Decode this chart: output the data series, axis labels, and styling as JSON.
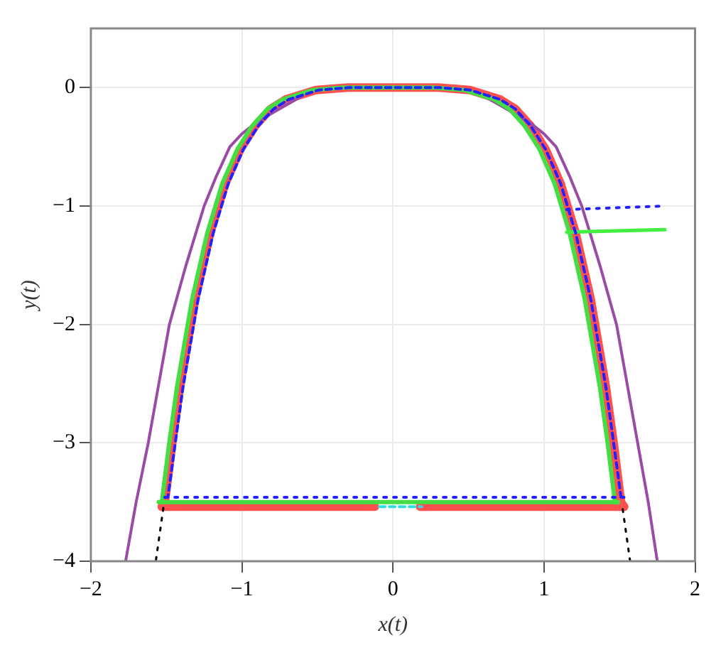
{
  "chart_data": {
    "type": "line",
    "xlabel": "x(t)",
    "ylabel": "y(t)",
    "xlim": [
      -2,
      2
    ],
    "ylim": [
      -4,
      0.5
    ],
    "xticks": [
      -2,
      -1,
      0,
      1,
      2
    ],
    "yticks": [
      -4,
      -3,
      -2,
      -1,
      0
    ],
    "grid": true,
    "legend": false,
    "marker": "none",
    "series": [
      {
        "color": "#33dddd",
        "line_style": "dashed",
        "x": [
          -0.09,
          0.19
        ],
        "values": [
          -3.54,
          -3.54
        ]
      },
      {
        "color": "#000000",
        "line_style": "dotted",
        "x": [
          -1.52,
          -1.57,
          0,
          1.57,
          1.52
        ],
        "values": [
          -3.55,
          -4,
          null,
          -4,
          -3.55
        ]
      },
      {
        "color": "#2222ff",
        "line_style": "dashed",
        "x": [
          -1.51,
          -1.49,
          -1.44,
          -1.39,
          -1.29,
          -1.19,
          -1.09,
          -0.99,
          -0.89,
          -0.79,
          -0.69,
          -0.49,
          -0.29,
          0.01,
          0.31,
          0.51,
          0.71,
          0.81,
          0.91,
          1.01,
          1.11,
          1.21,
          1.31,
          1.41,
          1.46,
          1.51,
          1.53
        ],
        "values": [
          -3.46,
          -3.46,
          -2.99,
          -2.53,
          -1.79,
          -1.23,
          -0.81,
          -0.52,
          -0.32,
          -0.18,
          -0.1,
          -0.02,
          0,
          0,
          0,
          -0.02,
          -0.1,
          -0.18,
          -0.32,
          -0.52,
          -0.81,
          -1.23,
          -1.79,
          -2.53,
          -2.99,
          -3.46,
          -3.46
        ]
      },
      {
        "color": "#2222ff",
        "line_style": "dotted",
        "x": [
          -1.51,
          1.53
        ],
        "values": [
          -3.46,
          -3.46
        ]
      },
      {
        "color": "#2222ff",
        "line_style": "dotted",
        "x": [
          1.15,
          1.8
        ],
        "values": [
          -1.03,
          -1.0
        ]
      },
      {
        "color": "#44ee44",
        "line_style": "solid",
        "x": [
          1.15,
          1.8
        ],
        "values": [
          -1.22,
          -1.2
        ]
      },
      {
        "color": "#44dd44",
        "line_style": "solid",
        "x": [
          -1.55,
          -1.53,
          -1.48,
          -1.43,
          -1.33,
          -1.23,
          -1.13,
          -1.03,
          -0.93,
          -0.83,
          -0.73,
          -0.53,
          -0.33,
          -0.03,
          0.27,
          0.47,
          0.67,
          0.77,
          0.87,
          0.97,
          1.07,
          1.17,
          1.27,
          1.37,
          1.42,
          1.47,
          1.49
        ],
        "values": [
          -3.5,
          -3.5,
          -2.99,
          -2.53,
          -1.79,
          -1.23,
          -0.81,
          -0.52,
          -0.32,
          -0.18,
          -0.1,
          -0.02,
          0,
          0,
          0,
          -0.02,
          -0.1,
          -0.18,
          -0.32,
          -0.52,
          -0.81,
          -1.23,
          -1.79,
          -2.53,
          -2.99,
          -3.5,
          -3.5
        ]
      },
      {
        "color": "#44dd44",
        "line_style": "solid",
        "x": [
          -1.55,
          1.49
        ],
        "values": [
          -3.5,
          -3.5
        ]
      },
      {
        "color": "#9b4aa8",
        "line_style": "solid",
        "x": [
          -1.77,
          -1.7,
          -1.62,
          -1.55,
          -1.48,
          -1.37,
          -1.25,
          -1.17,
          -1.08,
          -1.0,
          -0.9,
          -0.78,
          -0.6,
          -0.3,
          0,
          0.3,
          0.6,
          0.78,
          0.9,
          1.0,
          1.08,
          1.17,
          1.25,
          1.37,
          1.48,
          1.55,
          1.62,
          1.69,
          1.75
        ],
        "values": [
          -4,
          -3.5,
          -3,
          -2.5,
          -2,
          -1.5,
          -1,
          -0.75,
          -0.5,
          -0.39,
          -0.29,
          -0.2,
          -0.07,
          null,
          null,
          null,
          -0.07,
          -0.2,
          -0.29,
          -0.39,
          -0.5,
          -0.75,
          -1,
          -1.5,
          -2,
          -2.5,
          -3,
          -3.5,
          -4
        ]
      },
      {
        "color": "#ff5050",
        "line_style": "solid",
        "x": [
          -1.53,
          -1.51,
          -1.46,
          -1.41,
          -1.31,
          -1.21,
          -1.11,
          -1.01,
          -0.91,
          -0.81,
          -0.71,
          -0.51,
          -0.3,
          0,
          0.3,
          0.51,
          0.71,
          0.81,
          0.91,
          1.01,
          1.11,
          1.21,
          1.31,
          1.41,
          1.46,
          1.51,
          1.53
        ],
        "values": [
          -3.54,
          -3.5,
          -2.99,
          -2.53,
          -1.79,
          -1.23,
          -0.81,
          -0.52,
          -0.32,
          -0.18,
          -0.1,
          -0.02,
          0,
          0,
          0,
          -0.02,
          -0.1,
          -0.18,
          -0.32,
          -0.52,
          -0.81,
          -1.23,
          -1.79,
          -2.53,
          -2.99,
          -3.5,
          -3.54
        ]
      },
      {
        "color": "#ff5050",
        "line_style": "solid",
        "x": [
          -1.53,
          -0.12,
          0.03,
          0.18,
          1.53
        ],
        "values": [
          -3.54,
          -3.54,
          null,
          -3.54,
          -3.54
        ]
      }
    ]
  }
}
